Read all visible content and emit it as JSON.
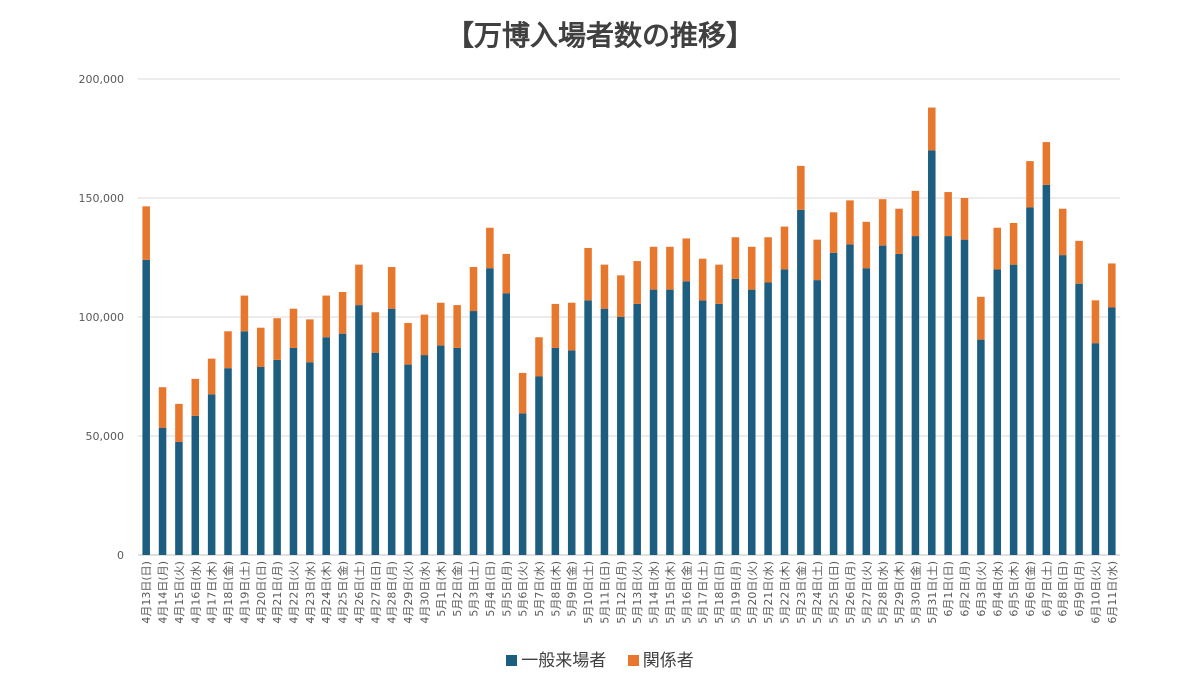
{
  "chart_data": {
    "type": "bar",
    "stacked": true,
    "title": "【万博入場者数の推移】",
    "xlabel": "",
    "ylabel": "",
    "ylim": [
      0,
      200000
    ],
    "yticks": [
      "0",
      "50,000",
      "100,000",
      "150,000",
      "200,000"
    ],
    "grid": true,
    "legend_position": "bottom",
    "categories": [
      "4月13日(日)",
      "4月14日(月)",
      "4月15日(火)",
      "4月16日(水)",
      "4月17日(木)",
      "4月18日(金)",
      "4月19日(土)",
      "4月20日(日)",
      "4月21日(月)",
      "4月22日(火)",
      "4月23日(水)",
      "4月24日(木)",
      "4月25日(金)",
      "4月26日(土)",
      "4月27日(日)",
      "4月28日(月)",
      "4月29日(火)",
      "4月30日(水)",
      "5月1日(木)",
      "5月2日(金)",
      "5月3日(土)",
      "5月4日(日)",
      "5月5日(月)",
      "5月6日(火)",
      "5月7日(水)",
      "5月8日(木)",
      "5月9日(金)",
      "5月10日(土)",
      "5月11日(日)",
      "5月12日(月)",
      "5月13日(火)",
      "5月14日(水)",
      "5月15日(木)",
      "5月16日(金)",
      "5月17日(土)",
      "5月18日(日)",
      "5月19日(月)",
      "5月20日(火)",
      "5月21日(水)",
      "5月22日(木)",
      "5月23日(金)",
      "5月24日(土)",
      "5月25日(日)",
      "5月26日(月)",
      "5月27日(火)",
      "5月28日(水)",
      "5月29日(木)",
      "5月30日(金)",
      "5月31日(土)",
      "6月1日(日)",
      "6月2日(月)",
      "6月3日(火)",
      "6月4日(水)",
      "6月5日(木)",
      "6月6日(金)",
      "6月7日(土)",
      "6月8日(日)",
      "6月9日(月)",
      "6月10日(火)",
      "6月11日(水)"
    ],
    "series": [
      {
        "name": "一般来場者",
        "color": "#1d5e80",
        "values": [
          124000,
          53500,
          47500,
          58500,
          67500,
          78500,
          94000,
          79000,
          82000,
          87000,
          81000,
          91500,
          93000,
          105000,
          85000,
          103500,
          80000,
          84000,
          88000,
          87000,
          102500,
          120500,
          110000,
          59500,
          75000,
          87000,
          86000,
          107000,
          103500,
          100000,
          105500,
          111500,
          111500,
          115000,
          107000,
          105500,
          116000,
          111500,
          114500,
          120000,
          145000,
          115500,
          127000,
          130500,
          120500,
          130000,
          126500,
          134000,
          170000,
          134000,
          132500,
          90500,
          120000,
          122000,
          146000,
          155500,
          126000,
          114000,
          89000,
          104000
        ]
      },
      {
        "name": "関係者",
        "color": "#e8772e",
        "values": [
          22500,
          17000,
          16000,
          15500,
          15000,
          15500,
          15000,
          16500,
          17500,
          16500,
          18000,
          17500,
          17500,
          17000,
          17000,
          17500,
          17500,
          17000,
          18000,
          18000,
          18500,
          17000,
          16500,
          17000,
          16500,
          18500,
          20000,
          22000,
          18500,
          17500,
          18000,
          18000,
          18000,
          18000,
          17500,
          16500,
          17500,
          18000,
          19000,
          18000,
          18500,
          17000,
          17000,
          18500,
          19500,
          19500,
          19000,
          19000,
          18000,
          18500,
          17500,
          18000,
          17500,
          17500,
          19500,
          18000,
          19500,
          18000,
          18000,
          18500
        ]
      }
    ]
  }
}
